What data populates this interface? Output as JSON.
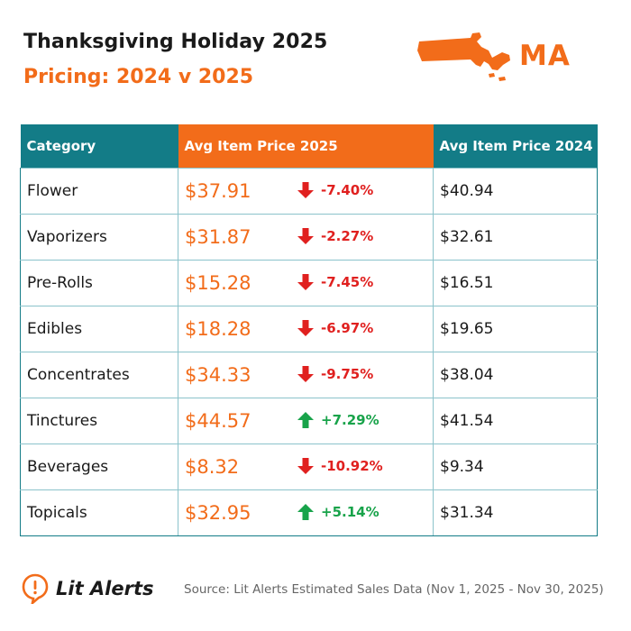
{
  "header": {
    "title": "Thanksgiving Holiday 2025",
    "subtitle": "Pricing: 2024 v 2025",
    "state_code": "MA"
  },
  "colors": {
    "accent": "#f26c1a",
    "teal": "#137c87",
    "down": "#e0201f",
    "up": "#18a34a",
    "grid": "#8bc3cb"
  },
  "chart_data": {
    "type": "table",
    "title": "Thanksgiving Holiday 2025 Pricing: 2024 v 2025",
    "columns": [
      "Category",
      "Avg Item Price 2025",
      "Avg Item Price 2024"
    ],
    "rows": [
      {
        "category": "Flower",
        "price_2025": "$37.91",
        "change": "-7.40%",
        "direction": "down",
        "price_2024": "$40.94"
      },
      {
        "category": "Vaporizers",
        "price_2025": "$31.87",
        "change": "-2.27%",
        "direction": "down",
        "price_2024": "$32.61"
      },
      {
        "category": "Pre-Rolls",
        "price_2025": "$15.28",
        "change": "-7.45%",
        "direction": "down",
        "price_2024": "$16.51"
      },
      {
        "category": "Edibles",
        "price_2025": "$18.28",
        "change": "-6.97%",
        "direction": "down",
        "price_2024": "$19.65"
      },
      {
        "category": "Concentrates",
        "price_2025": "$34.33",
        "change": "-9.75%",
        "direction": "down",
        "price_2024": "$38.04"
      },
      {
        "category": "Tinctures",
        "price_2025": "$44.57",
        "change": "+7.29%",
        "direction": "up",
        "price_2024": "$41.54"
      },
      {
        "category": "Beverages",
        "price_2025": "$8.32",
        "change": "-10.92%",
        "direction": "down",
        "price_2024": "$9.34"
      },
      {
        "category": "Topicals",
        "price_2025": "$32.95",
        "change": "+5.14%",
        "direction": "up",
        "price_2024": "$31.34"
      }
    ]
  },
  "footer": {
    "brand": "Lit Alerts",
    "source": "Source: Lit Alerts Estimated Sales Data (Nov 1, 2025 - Nov 30, 2025)"
  }
}
